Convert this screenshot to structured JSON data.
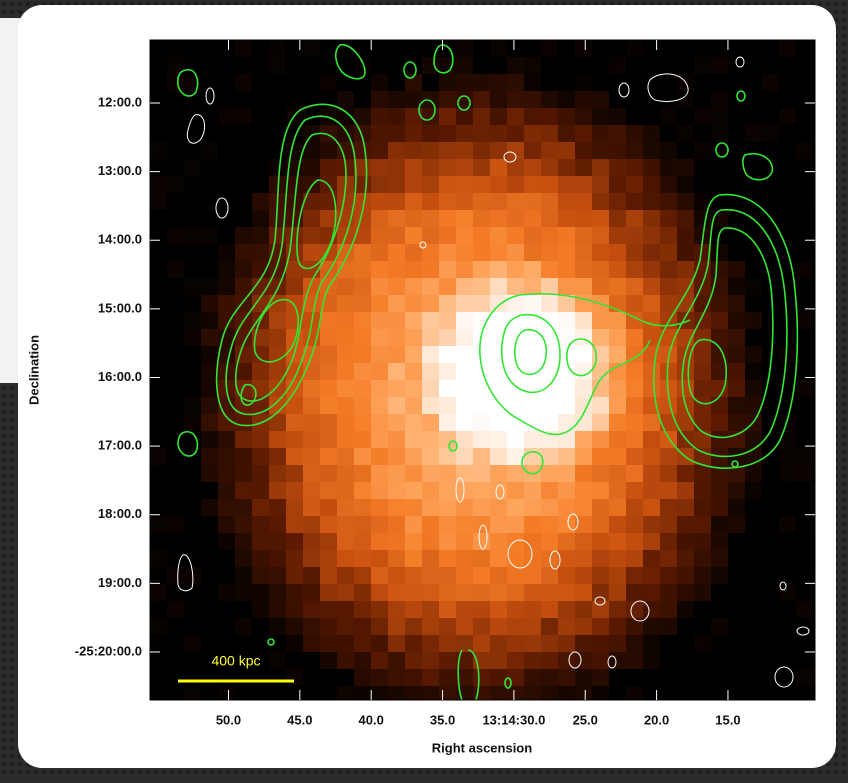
{
  "chart_data": {
    "type": "image",
    "xlabel": "Right ascension",
    "ylabel": "Declination",
    "xlim": [
      55.5,
      8.9
    ],
    "ylim": [
      -25.345,
      -25.1847
    ],
    "xticks": [
      {
        "value": 50,
        "label": "50.0"
      },
      {
        "value": 45,
        "label": "45.0"
      },
      {
        "value": 40,
        "label": "40.0"
      },
      {
        "value": 35,
        "label": "35.0"
      },
      {
        "value": 30,
        "label": "13:14:30.0"
      },
      {
        "value": 25,
        "label": "25.0"
      },
      {
        "value": 20,
        "label": "20.0"
      },
      {
        "value": 15,
        "label": "15.0"
      }
    ],
    "yticks": [
      {
        "value": -25.2,
        "label": "12:00.0"
      },
      {
        "value": -25.21667,
        "label": "13:00.0"
      },
      {
        "value": -25.23333,
        "label": "14:00.0"
      },
      {
        "value": -25.25,
        "label": "15:00.0"
      },
      {
        "value": -25.26667,
        "label": "16:00.0"
      },
      {
        "value": -25.28333,
        "label": "17:00.0"
      },
      {
        "value": -25.3,
        "label": "18:00.0"
      },
      {
        "value": -25.31667,
        "label": "19:00.0"
      },
      {
        "value": -25.33333,
        "label": "-25:20:00.0"
      }
    ],
    "scale_bar_label": "400 kpc"
  }
}
